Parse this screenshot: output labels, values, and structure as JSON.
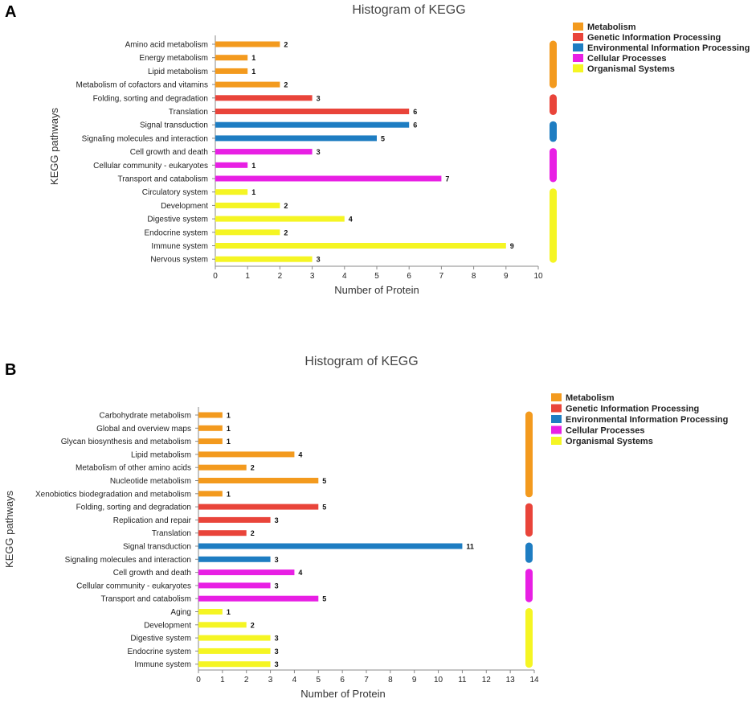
{
  "colors": {
    "Metabolism": "#F39A1E",
    "Genetic Information Processing": "#E9443A",
    "Environmental Information Processing": "#1E7DC2",
    "Cellular Processes": "#E81FE4",
    "Organismal Systems": "#F5F523"
  },
  "legend": [
    "Metabolism",
    "Genetic Information Processing",
    "Environmental Information Processing",
    "Cellular Processes",
    "Organismal Systems"
  ],
  "chart_data": [
    {
      "panel": "A",
      "type": "bar",
      "orientation": "horizontal",
      "title": "Histogram of KEGG",
      "xlabel": "Number of Protein",
      "ylabel": "KEGG pathways",
      "xlim": [
        0,
        10
      ],
      "xticks": [
        0,
        1,
        2,
        3,
        4,
        5,
        6,
        7,
        8,
        9,
        10
      ],
      "categories": [
        "Amino acid metabolism",
        "Energy metabolism",
        "Lipid metabolism",
        "Metabolism of cofactors and vitamins",
        "Folding, sorting and degradation",
        "Translation",
        "Signal transduction",
        "Signaling molecules and interaction",
        "Cell growth and death",
        "Cellular community - eukaryotes",
        "Transport and catabolism",
        "Circulatory system",
        "Development",
        "Digestive system",
        "Endocrine system",
        "Immune system",
        "Nervous system"
      ],
      "values": [
        2,
        1,
        1,
        2,
        3,
        6,
        6,
        5,
        3,
        1,
        7,
        1,
        2,
        4,
        2,
        9,
        3
      ],
      "groups": [
        "Metabolism",
        "Metabolism",
        "Metabolism",
        "Metabolism",
        "Genetic Information Processing",
        "Genetic Information Processing",
        "Environmental Information Processing",
        "Environmental Information Processing",
        "Cellular Processes",
        "Cellular Processes",
        "Cellular Processes",
        "Organismal Systems",
        "Organismal Systems",
        "Organismal Systems",
        "Organismal Systems",
        "Organismal Systems",
        "Organismal Systems"
      ],
      "legend_position": "top-right"
    },
    {
      "panel": "B",
      "type": "bar",
      "orientation": "horizontal",
      "title": "Histogram of KEGG",
      "xlabel": "Number of Protein",
      "ylabel": "KEGG pathways",
      "xlim": [
        0,
        14
      ],
      "xticks": [
        0,
        1,
        2,
        3,
        4,
        5,
        6,
        7,
        8,
        9,
        10,
        11,
        12,
        13,
        14
      ],
      "categories": [
        "Carbohydrate metabolism",
        "Global and overview maps",
        "Glycan biosynthesis and metabolism",
        "Lipid metabolism",
        "Metabolism of other amino acids",
        "Nucleotide metabolism",
        "Xenobiotics biodegradation and metabolism",
        "Folding, sorting and degradation",
        "Replication and repair",
        "Translation",
        "Signal transduction",
        "Signaling molecules and interaction",
        "Cell growth and death",
        "Cellular community - eukaryotes",
        "Transport and catabolism",
        "Aging",
        "Development",
        "Digestive system",
        "Endocrine system",
        "Immune system"
      ],
      "values": [
        1,
        1,
        1,
        4,
        2,
        5,
        1,
        5,
        3,
        2,
        11,
        3,
        4,
        3,
        5,
        1,
        2,
        3,
        3,
        3
      ],
      "groups": [
        "Metabolism",
        "Metabolism",
        "Metabolism",
        "Metabolism",
        "Metabolism",
        "Metabolism",
        "Metabolism",
        "Genetic Information Processing",
        "Genetic Information Processing",
        "Genetic Information Processing",
        "Environmental Information Processing",
        "Environmental Information Processing",
        "Cellular Processes",
        "Cellular Processes",
        "Cellular Processes",
        "Organismal Systems",
        "Organismal Systems",
        "Organismal Systems",
        "Organismal Systems",
        "Organismal Systems"
      ],
      "legend_position": "top-right"
    }
  ]
}
